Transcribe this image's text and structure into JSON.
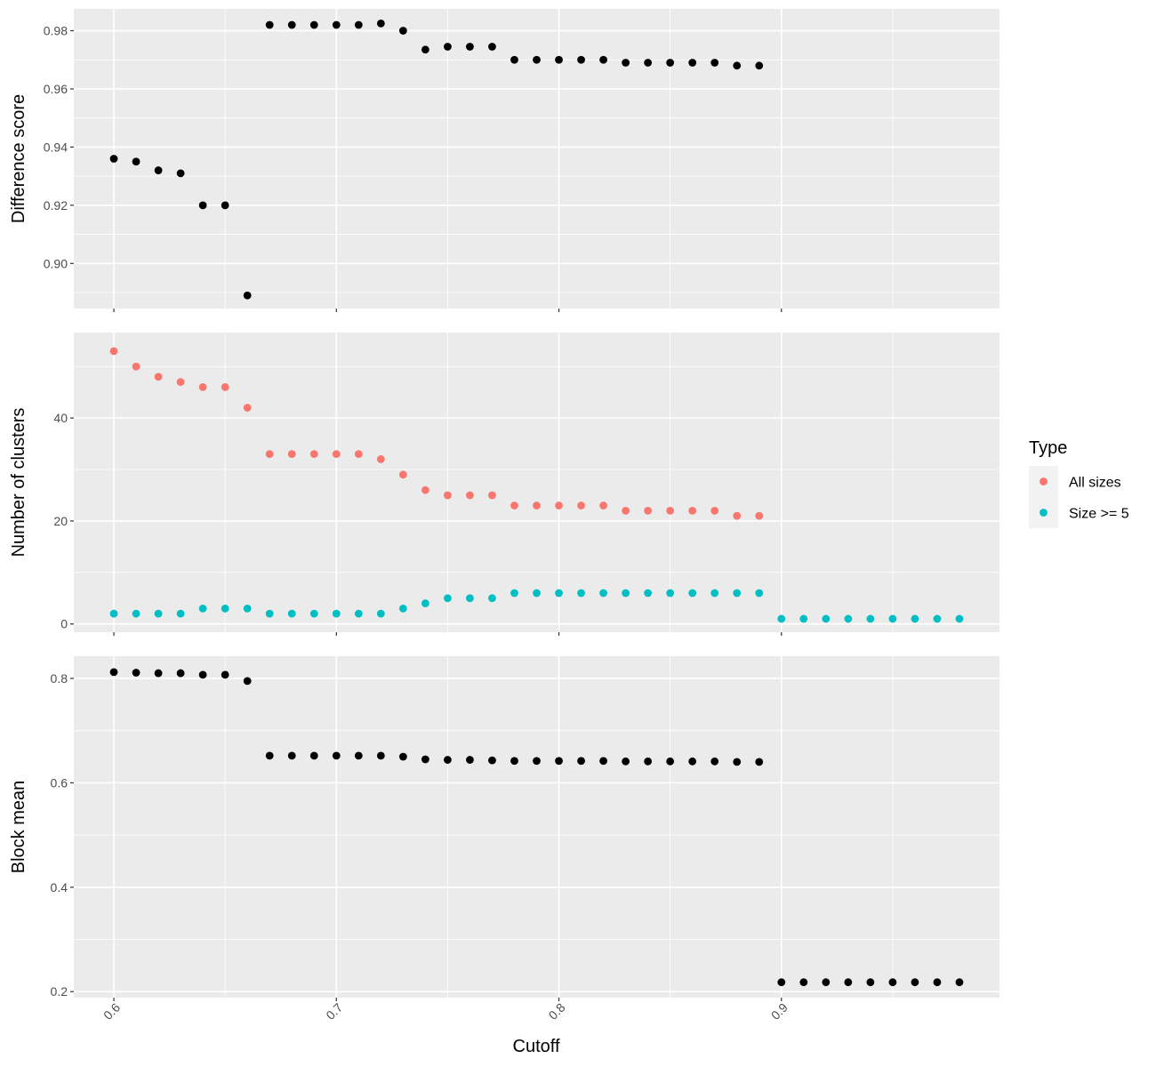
{
  "chart_data": {
    "type": "scatter",
    "x_axis": {
      "label": "Cutoff",
      "range": [
        0.582,
        0.998
      ],
      "ticks": [
        0.6,
        0.7,
        0.8,
        0.9
      ],
      "tick_labels": [
        "0.6",
        "0.7",
        "0.8",
        "0.9"
      ]
    },
    "panels": [
      {
        "ylabel": "Difference score",
        "ylim": [
          0.8845,
          0.9875
        ],
        "yticks": [
          0.9,
          0.92,
          0.94,
          0.96,
          0.98
        ],
        "ytick_labels": [
          "0.90",
          "0.92",
          "0.94",
          "0.96",
          "0.98"
        ],
        "series": [
          {
            "color": "#000000",
            "x": [
              0.6,
              0.61,
              0.62,
              0.63,
              0.64,
              0.65,
              0.66,
              0.67,
              0.68,
              0.69,
              0.7,
              0.71,
              0.72,
              0.73,
              0.74,
              0.75,
              0.76,
              0.77,
              0.78,
              0.79,
              0.8,
              0.81,
              0.82,
              0.83,
              0.84,
              0.85,
              0.86,
              0.87,
              0.88,
              0.89
            ],
            "y": [
              0.936,
              0.935,
              0.932,
              0.931,
              0.92,
              0.92,
              0.889,
              0.982,
              0.982,
              0.982,
              0.982,
              0.982,
              0.9825,
              0.98,
              0.9735,
              0.9745,
              0.9745,
              0.9745,
              0.97,
              0.97,
              0.97,
              0.97,
              0.97,
              0.969,
              0.969,
              0.969,
              0.969,
              0.969,
              0.968,
              0.968
            ]
          }
        ]
      },
      {
        "ylabel": "Number of clusters",
        "ylim": [
          -1.6,
          56.6
        ],
        "yticks": [
          0,
          20,
          40
        ],
        "ytick_labels": [
          "0",
          "20",
          "40"
        ],
        "series": [
          {
            "name": "All sizes",
            "color": "#F8766D",
            "x": [
              0.6,
              0.61,
              0.62,
              0.63,
              0.64,
              0.65,
              0.66,
              0.67,
              0.68,
              0.69,
              0.7,
              0.71,
              0.72,
              0.73,
              0.74,
              0.75,
              0.76,
              0.77,
              0.78,
              0.79,
              0.8,
              0.81,
              0.82,
              0.83,
              0.84,
              0.85,
              0.86,
              0.87,
              0.88,
              0.89
            ],
            "y": [
              53,
              50,
              48,
              47,
              46,
              46,
              42,
              33,
              33,
              33,
              33,
              33,
              32,
              29,
              26,
              25,
              25,
              25,
              23,
              23,
              23,
              23,
              23,
              22,
              22,
              22,
              22,
              22,
              21,
              21
            ]
          },
          {
            "name": "Size >= 5",
            "color": "#00BFC4",
            "x": [
              0.6,
              0.61,
              0.62,
              0.63,
              0.64,
              0.65,
              0.66,
              0.67,
              0.68,
              0.69,
              0.7,
              0.71,
              0.72,
              0.73,
              0.74,
              0.75,
              0.76,
              0.77,
              0.78,
              0.79,
              0.8,
              0.81,
              0.82,
              0.83,
              0.84,
              0.85,
              0.86,
              0.87,
              0.88,
              0.89,
              0.9,
              0.91,
              0.92,
              0.93,
              0.94,
              0.95,
              0.96,
              0.97,
              0.98
            ],
            "y": [
              2,
              2,
              2,
              2,
              3,
              3,
              3,
              2,
              2,
              2,
              2,
              2,
              2,
              3,
              4,
              5,
              5,
              5,
              6,
              6,
              6,
              6,
              6,
              6,
              6,
              6,
              6,
              6,
              6,
              6,
              1,
              1,
              1,
              1,
              1,
              1,
              1,
              1,
              1
            ]
          }
        ]
      },
      {
        "ylabel": "Block mean",
        "ylim": [
          0.1885,
          0.8425
        ],
        "yticks": [
          0.2,
          0.4,
          0.6,
          0.8
        ],
        "ytick_labels": [
          "0.2",
          "0.4",
          "0.6",
          "0.8"
        ],
        "series": [
          {
            "color": "#000000",
            "x": [
              0.6,
              0.61,
              0.62,
              0.63,
              0.64,
              0.65,
              0.66,
              0.67,
              0.68,
              0.69,
              0.7,
              0.71,
              0.72,
              0.73,
              0.74,
              0.75,
              0.76,
              0.77,
              0.78,
              0.79,
              0.8,
              0.81,
              0.82,
              0.83,
              0.84,
              0.85,
              0.86,
              0.87,
              0.88,
              0.89,
              0.9,
              0.91,
              0.92,
              0.93,
              0.94,
              0.95,
              0.96,
              0.97,
              0.98
            ],
            "y": [
              0.812,
              0.811,
              0.81,
              0.81,
              0.807,
              0.807,
              0.795,
              0.652,
              0.652,
              0.652,
              0.652,
              0.652,
              0.652,
              0.65,
              0.645,
              0.644,
              0.644,
              0.643,
              0.642,
              0.642,
              0.642,
              0.642,
              0.642,
              0.641,
              0.641,
              0.641,
              0.641,
              0.641,
              0.64,
              0.64,
              0.218,
              0.218,
              0.218,
              0.218,
              0.218,
              0.218,
              0.218,
              0.218,
              0.218
            ]
          }
        ]
      }
    ],
    "legend": {
      "title": "Type",
      "placement": "right",
      "entries": [
        {
          "label": "All sizes",
          "color": "#F8766D"
        },
        {
          "label": "Size >= 5",
          "color": "#00BFC4"
        }
      ]
    },
    "grid": true,
    "panel_background": "#EBEBEB"
  }
}
